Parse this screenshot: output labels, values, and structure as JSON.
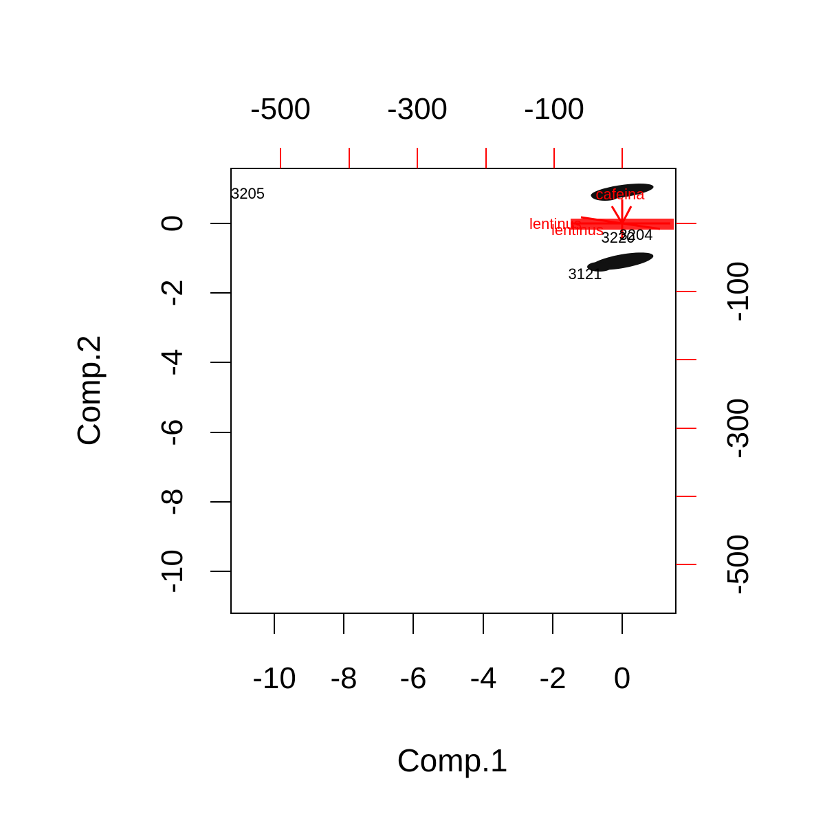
{
  "chart_data": {
    "type": "scatter",
    "title": "",
    "xlabel": "Comp.1",
    "ylabel": "Comp.2",
    "xlim": [
      -11.2,
      1.6
    ],
    "ylim": [
      -11.2,
      1.6
    ],
    "x_ticks": [
      "-10",
      "-8",
      "-6",
      "-4",
      "-2",
      "0"
    ],
    "y_ticks": [
      "-10",
      "-8",
      "-6",
      "-4",
      "-2",
      "0"
    ],
    "top_ticks": [
      "-500",
      "-300",
      "-100"
    ],
    "right_ticks": [
      "-500",
      "-300",
      "-100"
    ],
    "points": [
      {
        "label": "3205",
        "x": -10.7,
        "y": 0.85
      },
      {
        "label": "3121",
        "x": -1.3,
        "y": -1.45
      },
      {
        "label": "3220",
        "x": 0.15,
        "y": -0.4
      },
      {
        "label": "3204",
        "x": 0.35,
        "y": -0.35
      }
    ],
    "variables": [
      {
        "label": "cafeina",
        "x": 0.0,
        "y": 0.8
      },
      {
        "label": "lentinus",
        "x": -1.6,
        "y": 0.0
      },
      {
        "label": "lentinus",
        "x": -0.8,
        "y": -0.3
      },
      {
        "label": "...",
        "x": 1.2,
        "y": -0.2
      }
    ],
    "grid": false,
    "colors": {
      "points": "#000000",
      "variables": "#ff0000",
      "axes": "#000000"
    }
  }
}
